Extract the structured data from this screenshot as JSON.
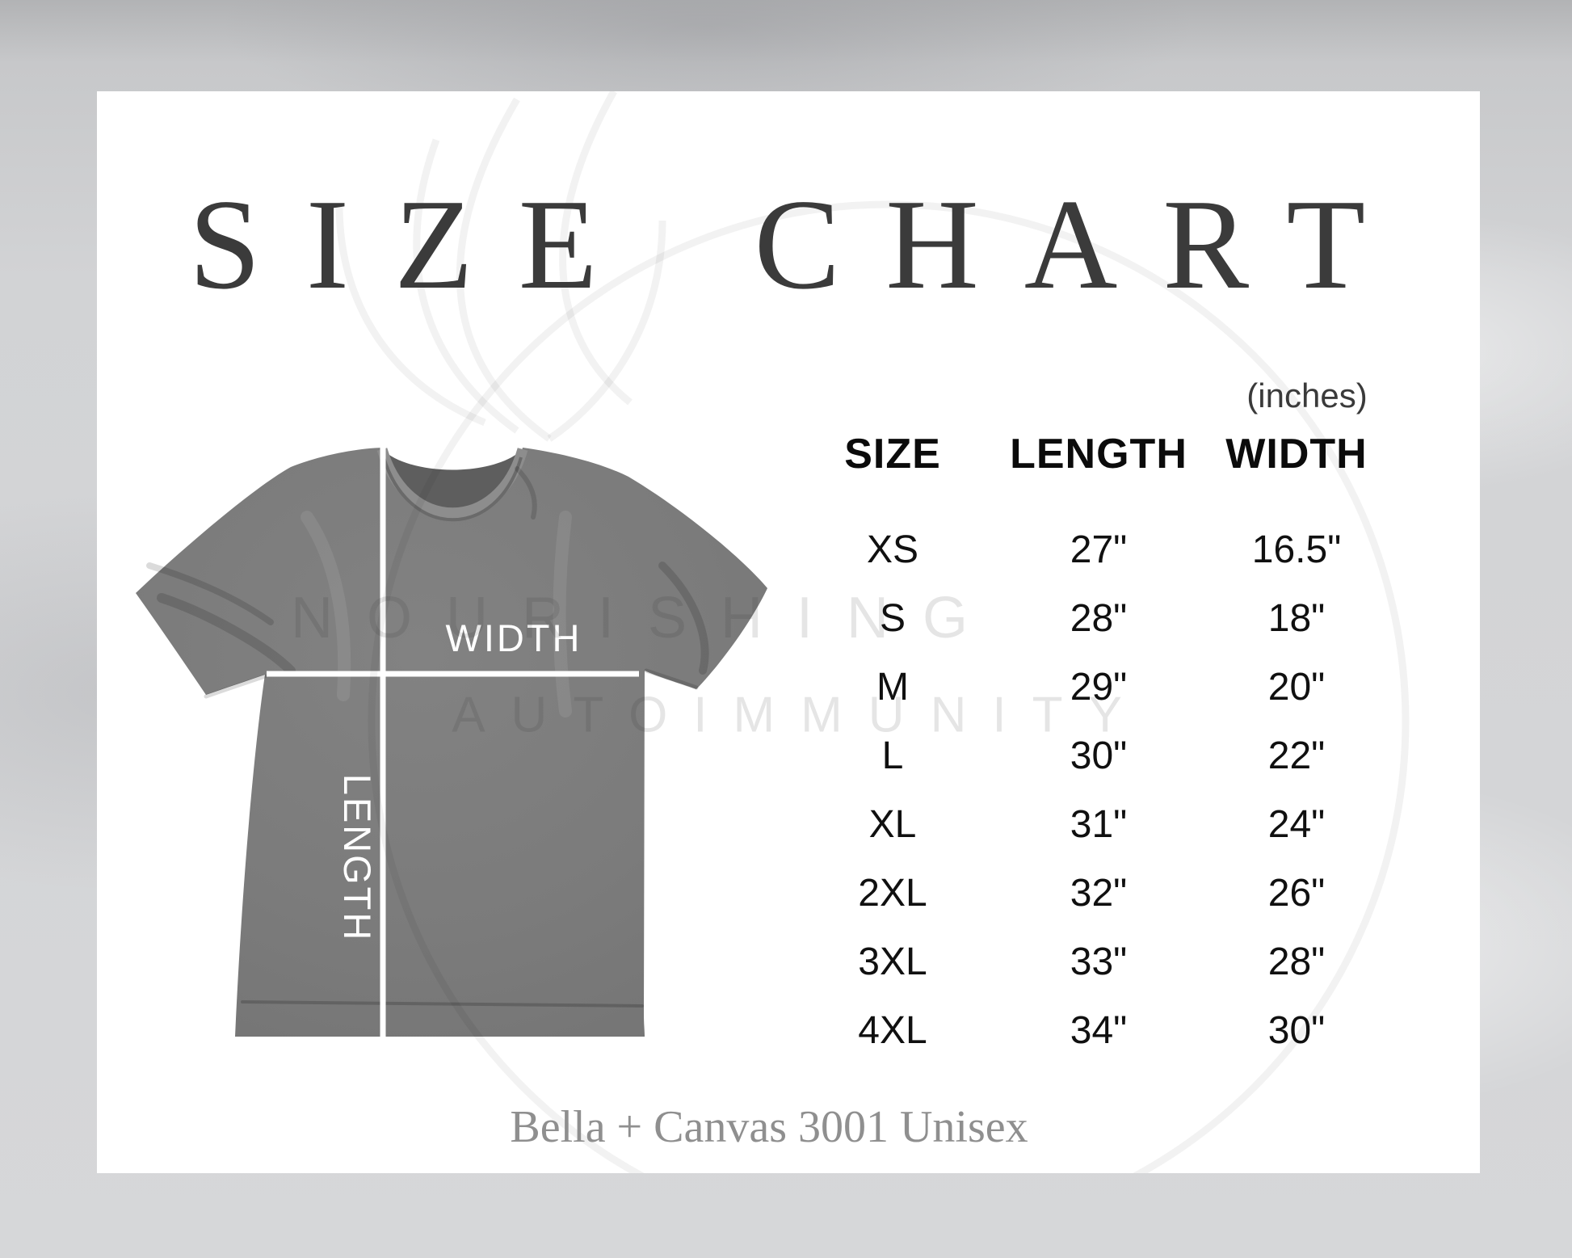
{
  "title": "SIZE CHART",
  "unit_note": "(inches)",
  "table": {
    "headers": [
      "SIZE",
      "LENGTH",
      "WIDTH"
    ]
  },
  "shirt": {
    "width_label": "WIDTH",
    "length_label": "LENGTH",
    "fabric_color": "#7b7b7b",
    "line_color": "#ffffff"
  },
  "watermark": {
    "line1": "NOURISHING",
    "line2": "AUTOIMMUNITY"
  },
  "footer": "Bella + Canvas 3001 Unisex",
  "colors": {
    "title_text": "#3b3b3b",
    "table_text": "#101010",
    "footer_text": "#8f8f8f",
    "card_background": "#ffffff",
    "marble_background": "#d3d4d6"
  },
  "chart_data": {
    "type": "table",
    "title": "SIZE CHART",
    "unit_note": "(inches)",
    "columns": [
      "SIZE",
      "LENGTH",
      "WIDTH"
    ],
    "rows": [
      {
        "size": "XS",
        "length": "27\"",
        "width": "16.5\""
      },
      {
        "size": "S",
        "length": "28\"",
        "width": "18\""
      },
      {
        "size": "M",
        "length": "29\"",
        "width": "20\""
      },
      {
        "size": "L",
        "length": "30\"",
        "width": "22\""
      },
      {
        "size": "XL",
        "length": "31\"",
        "width": "24\""
      },
      {
        "size": "2XL",
        "length": "32\"",
        "width": "26\""
      },
      {
        "size": "3XL",
        "length": "33\"",
        "width": "28\""
      },
      {
        "size": "4XL",
        "length": "34\"",
        "width": "30\""
      }
    ],
    "footer": "Bella + Canvas 3001 Unisex"
  }
}
